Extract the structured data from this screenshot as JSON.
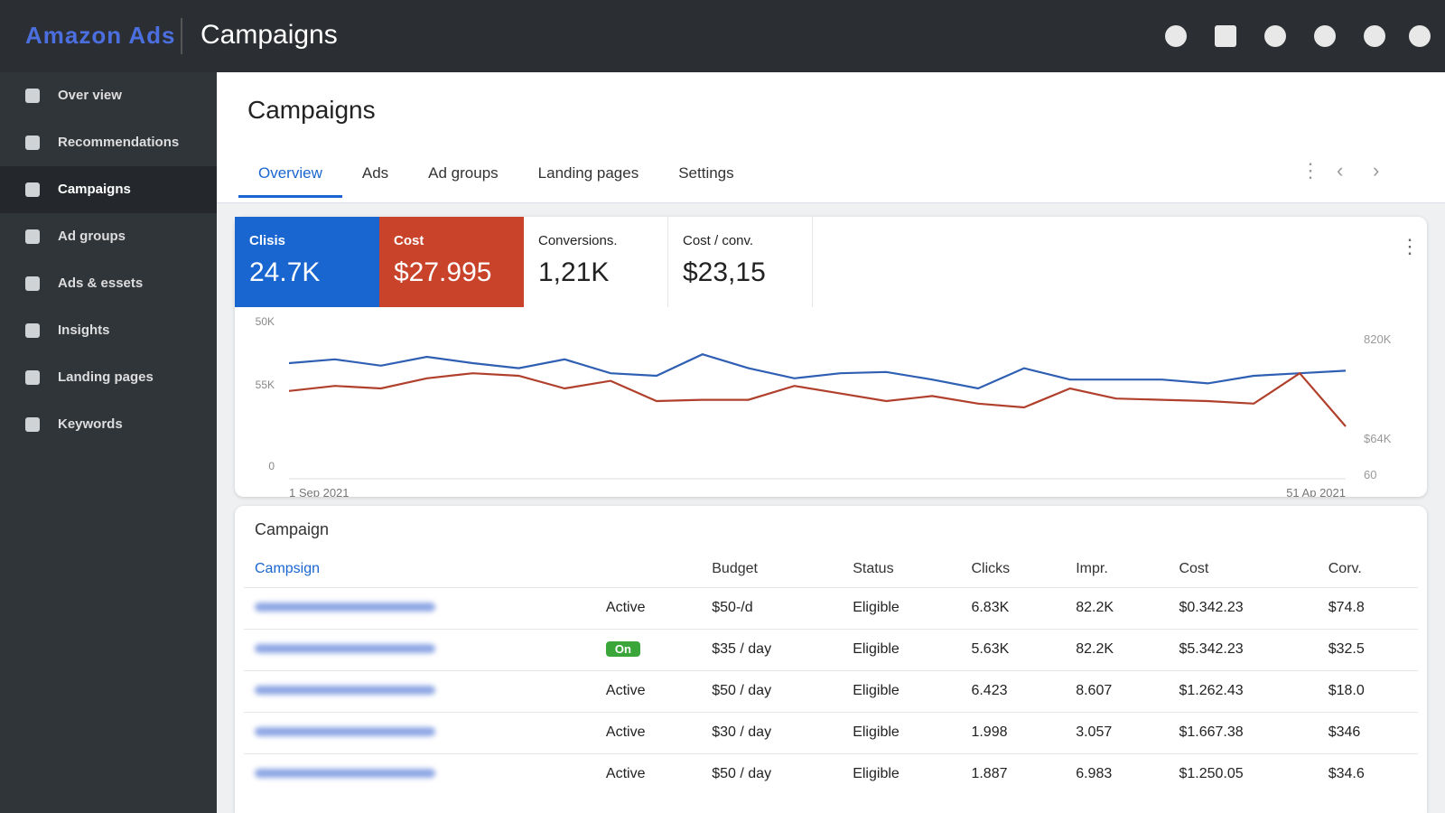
{
  "topbar": {
    "brand": "Amazon Ads",
    "title": "Campaigns"
  },
  "sidebar": {
    "items": [
      "Over view",
      "Recommendations",
      "Campaigns",
      "Ad groups",
      "Ads & essets",
      "Insights",
      "Landing pages",
      "Keywords"
    ],
    "active": 2
  },
  "header": {
    "title": "Campaigns"
  },
  "tabs": {
    "items": [
      "Overview",
      "Ads",
      "Ad groups",
      "Landing pages",
      "Settings"
    ],
    "active": 0
  },
  "metrics": [
    {
      "label": "Clisis",
      "value": "24.7K",
      "color": "#1a66d0"
    },
    {
      "label": "Cost",
      "value": "$27.995",
      "color": "#c8432a"
    },
    {
      "label": "Conversions.",
      "value": "1,21K"
    },
    {
      "label": "Cost / conv.",
      "value": "$23,15"
    }
  ],
  "chart": {
    "type": "line",
    "left_axis_labels": [
      "50K",
      "55K",
      "0"
    ],
    "right_axis_labels": [
      "820K",
      "$64K",
      "60"
    ],
    "x_labels": [
      "1 Sep 2021",
      "51 Ap 2021"
    ],
    "ylim": [
      0,
      100
    ],
    "series": [
      {
        "color": "#2f5fb3",
        "values": [
          70,
          73,
          68,
          75,
          70,
          66,
          73,
          62,
          60,
          77,
          66,
          58,
          62,
          63,
          57,
          50,
          66,
          57,
          57,
          57,
          54,
          60,
          62,
          64
        ]
      },
      {
        "color": "#b0402c",
        "values": [
          48,
          52,
          50,
          58,
          62,
          60,
          50,
          56,
          40,
          41,
          41,
          52,
          46,
          40,
          44,
          38,
          35,
          50,
          42,
          41,
          40,
          38,
          62,
          20
        ]
      }
    ]
  },
  "table": {
    "title": "Campaign",
    "headers": {
      "campaign": "Campsign",
      "budget": "Budget",
      "status": "Status",
      "clicks": "Clicks",
      "impr": "Impr.",
      "cost": "Cost",
      "conv": "Corv."
    },
    "rows": [
      {
        "active": "Active",
        "budget": "$50-/d",
        "status": "Eligible",
        "clicks": "6.83K",
        "impr": "82.2K",
        "cost": "$0.342.23",
        "conv": "$74.8"
      },
      {
        "active": "On",
        "budget": "$35 / day",
        "status": "Eligible",
        "clicks": "5.63K",
        "impr": "82.2K",
        "cost": "$5.342.23",
        "conv": "$32.5"
      },
      {
        "active": "Active",
        "budget": "$50 / day",
        "status": "Eligible",
        "clicks": "6.423",
        "impr": "8.607",
        "cost": "$1.262.43",
        "conv": "$18.0"
      },
      {
        "active": "Active",
        "budget": "$30 / day",
        "status": "Eligible",
        "clicks": "1.998",
        "impr": "3.057",
        "cost": "$1.667.38",
        "conv": "$346"
      },
      {
        "active": "Active",
        "budget": "$50 / day",
        "status": "Eligible",
        "clicks": "1.887",
        "impr": "6.983",
        "cost": "$1.250.05",
        "conv": "$34.6"
      }
    ]
  }
}
